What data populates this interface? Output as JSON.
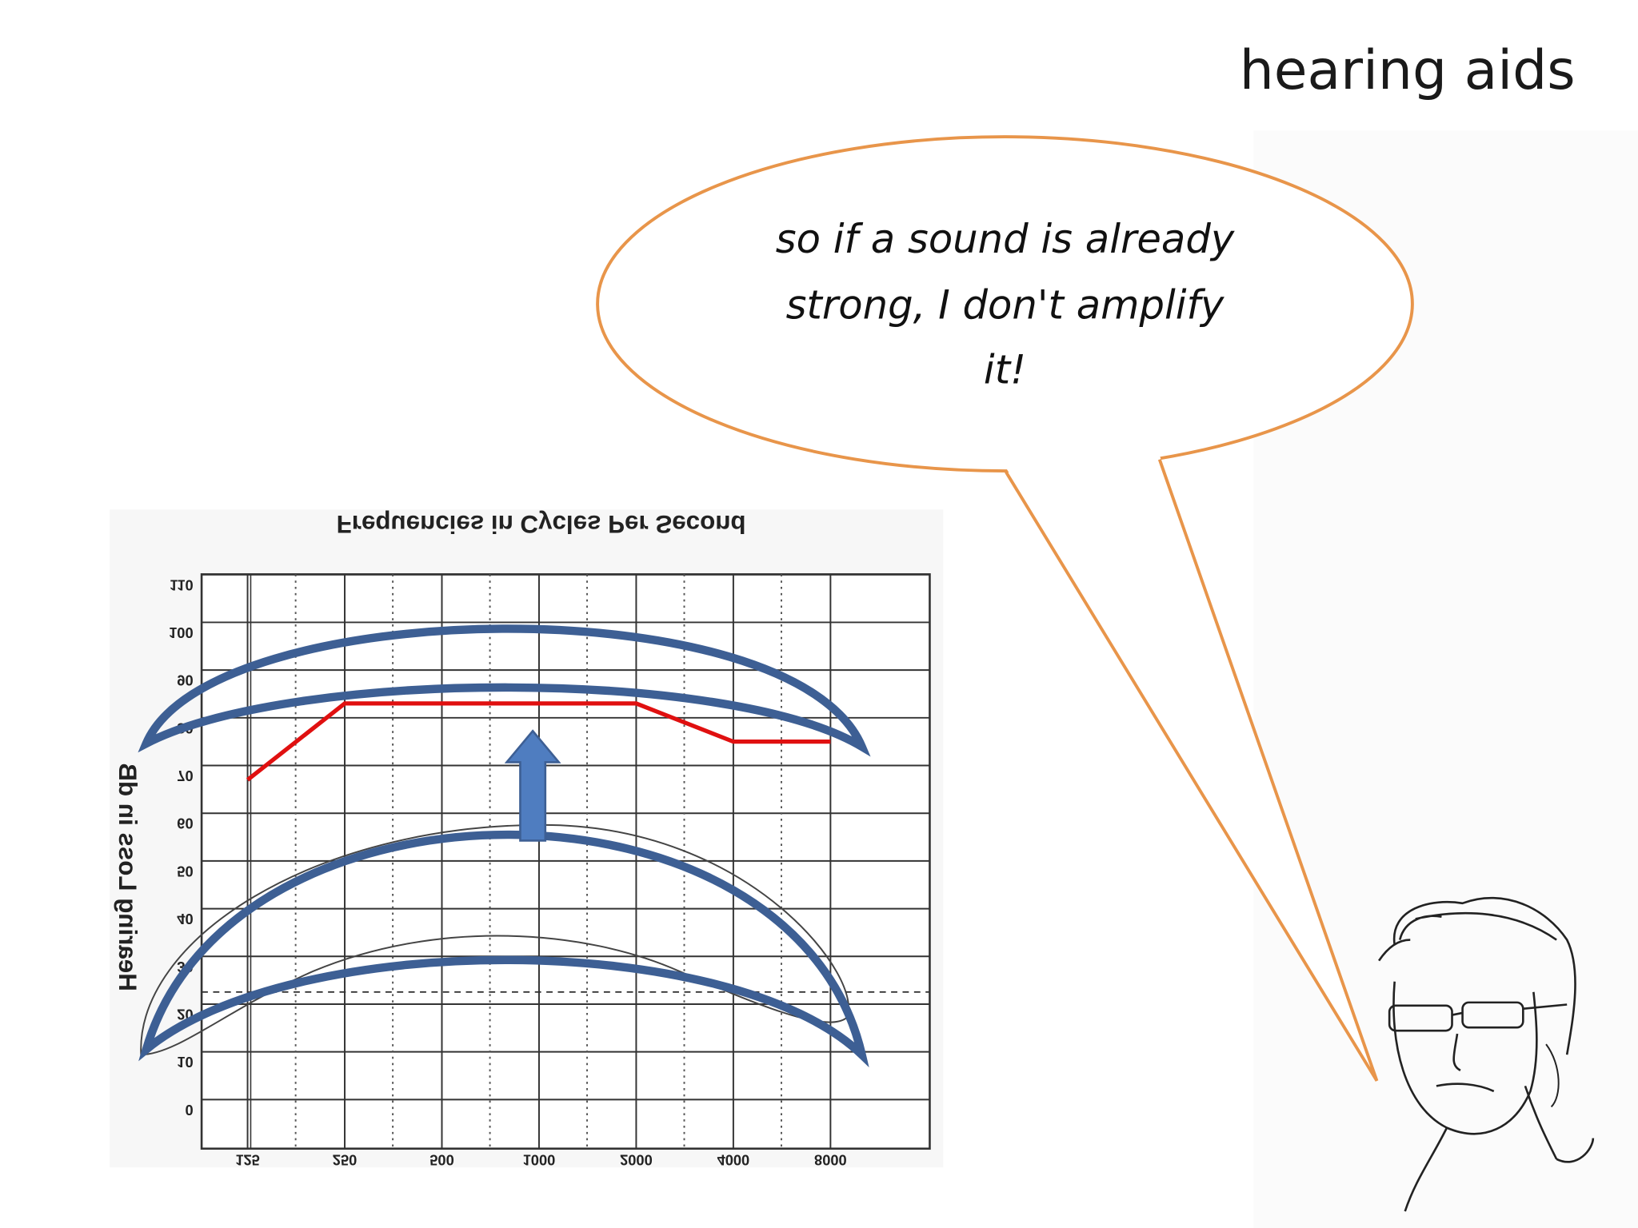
{
  "slide": {
    "title": "hearing aids"
  },
  "bubble": {
    "lines": [
      "so if a sound is already",
      "strong, I don't amplify",
      "it!"
    ]
  },
  "audiogram": {
    "title": "Frequencies in Cycles Per Second",
    "y_label": "Hearing Loss in dB",
    "yticks": [
      0,
      10,
      20,
      30,
      40,
      50,
      60,
      70,
      80,
      90,
      100,
      110
    ],
    "xticks": [
      125,
      250,
      500,
      1000,
      2000,
      4000,
      8000
    ],
    "red_line": {
      "x": [
        125,
        250,
        2000,
        4000,
        8000
      ],
      "values": [
        67,
        83,
        83,
        75,
        75
      ],
      "color": "#e01010"
    }
  }
}
